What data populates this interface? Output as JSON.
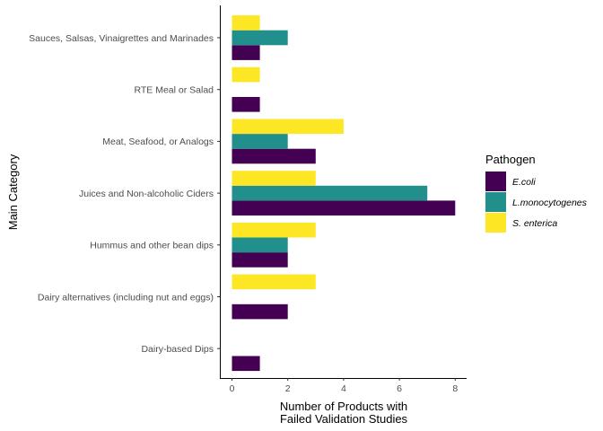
{
  "chart_data": {
    "type": "bar",
    "orientation": "horizontal",
    "categories": [
      "Sauces, Salsas, Vinaigrettes and Marinades",
      "RTE Meal or Salad",
      "Meat, Seafood, or Analogs",
      "Juices and Non-alcoholic Ciders",
      "Hummus and other bean dips",
      "Dairy alternatives (including nut and eggs)",
      "Dairy-based Dips"
    ],
    "series": [
      {
        "name": "E.coli",
        "color": "#440154",
        "values": [
          1,
          1,
          3,
          8,
          2,
          2,
          1
        ]
      },
      {
        "name": "L.monocytogenes",
        "color": "#21908C",
        "values": [
          2,
          0,
          2,
          7,
          2,
          0,
          0
        ]
      },
      {
        "name": "S. enterica",
        "color": "#FDE725",
        "values": [
          1,
          1,
          4,
          3,
          3,
          3,
          0
        ]
      }
    ],
    "xlabel_line1": "Number of Products with",
    "xlabel_line2": "Failed Validation Studies",
    "ylabel": "Main Category",
    "xlim": [
      0,
      8.4
    ],
    "xticks": [
      0,
      2,
      4,
      6,
      8
    ],
    "legend": {
      "title": "Pathogen",
      "position": "right"
    },
    "grid": false
  }
}
